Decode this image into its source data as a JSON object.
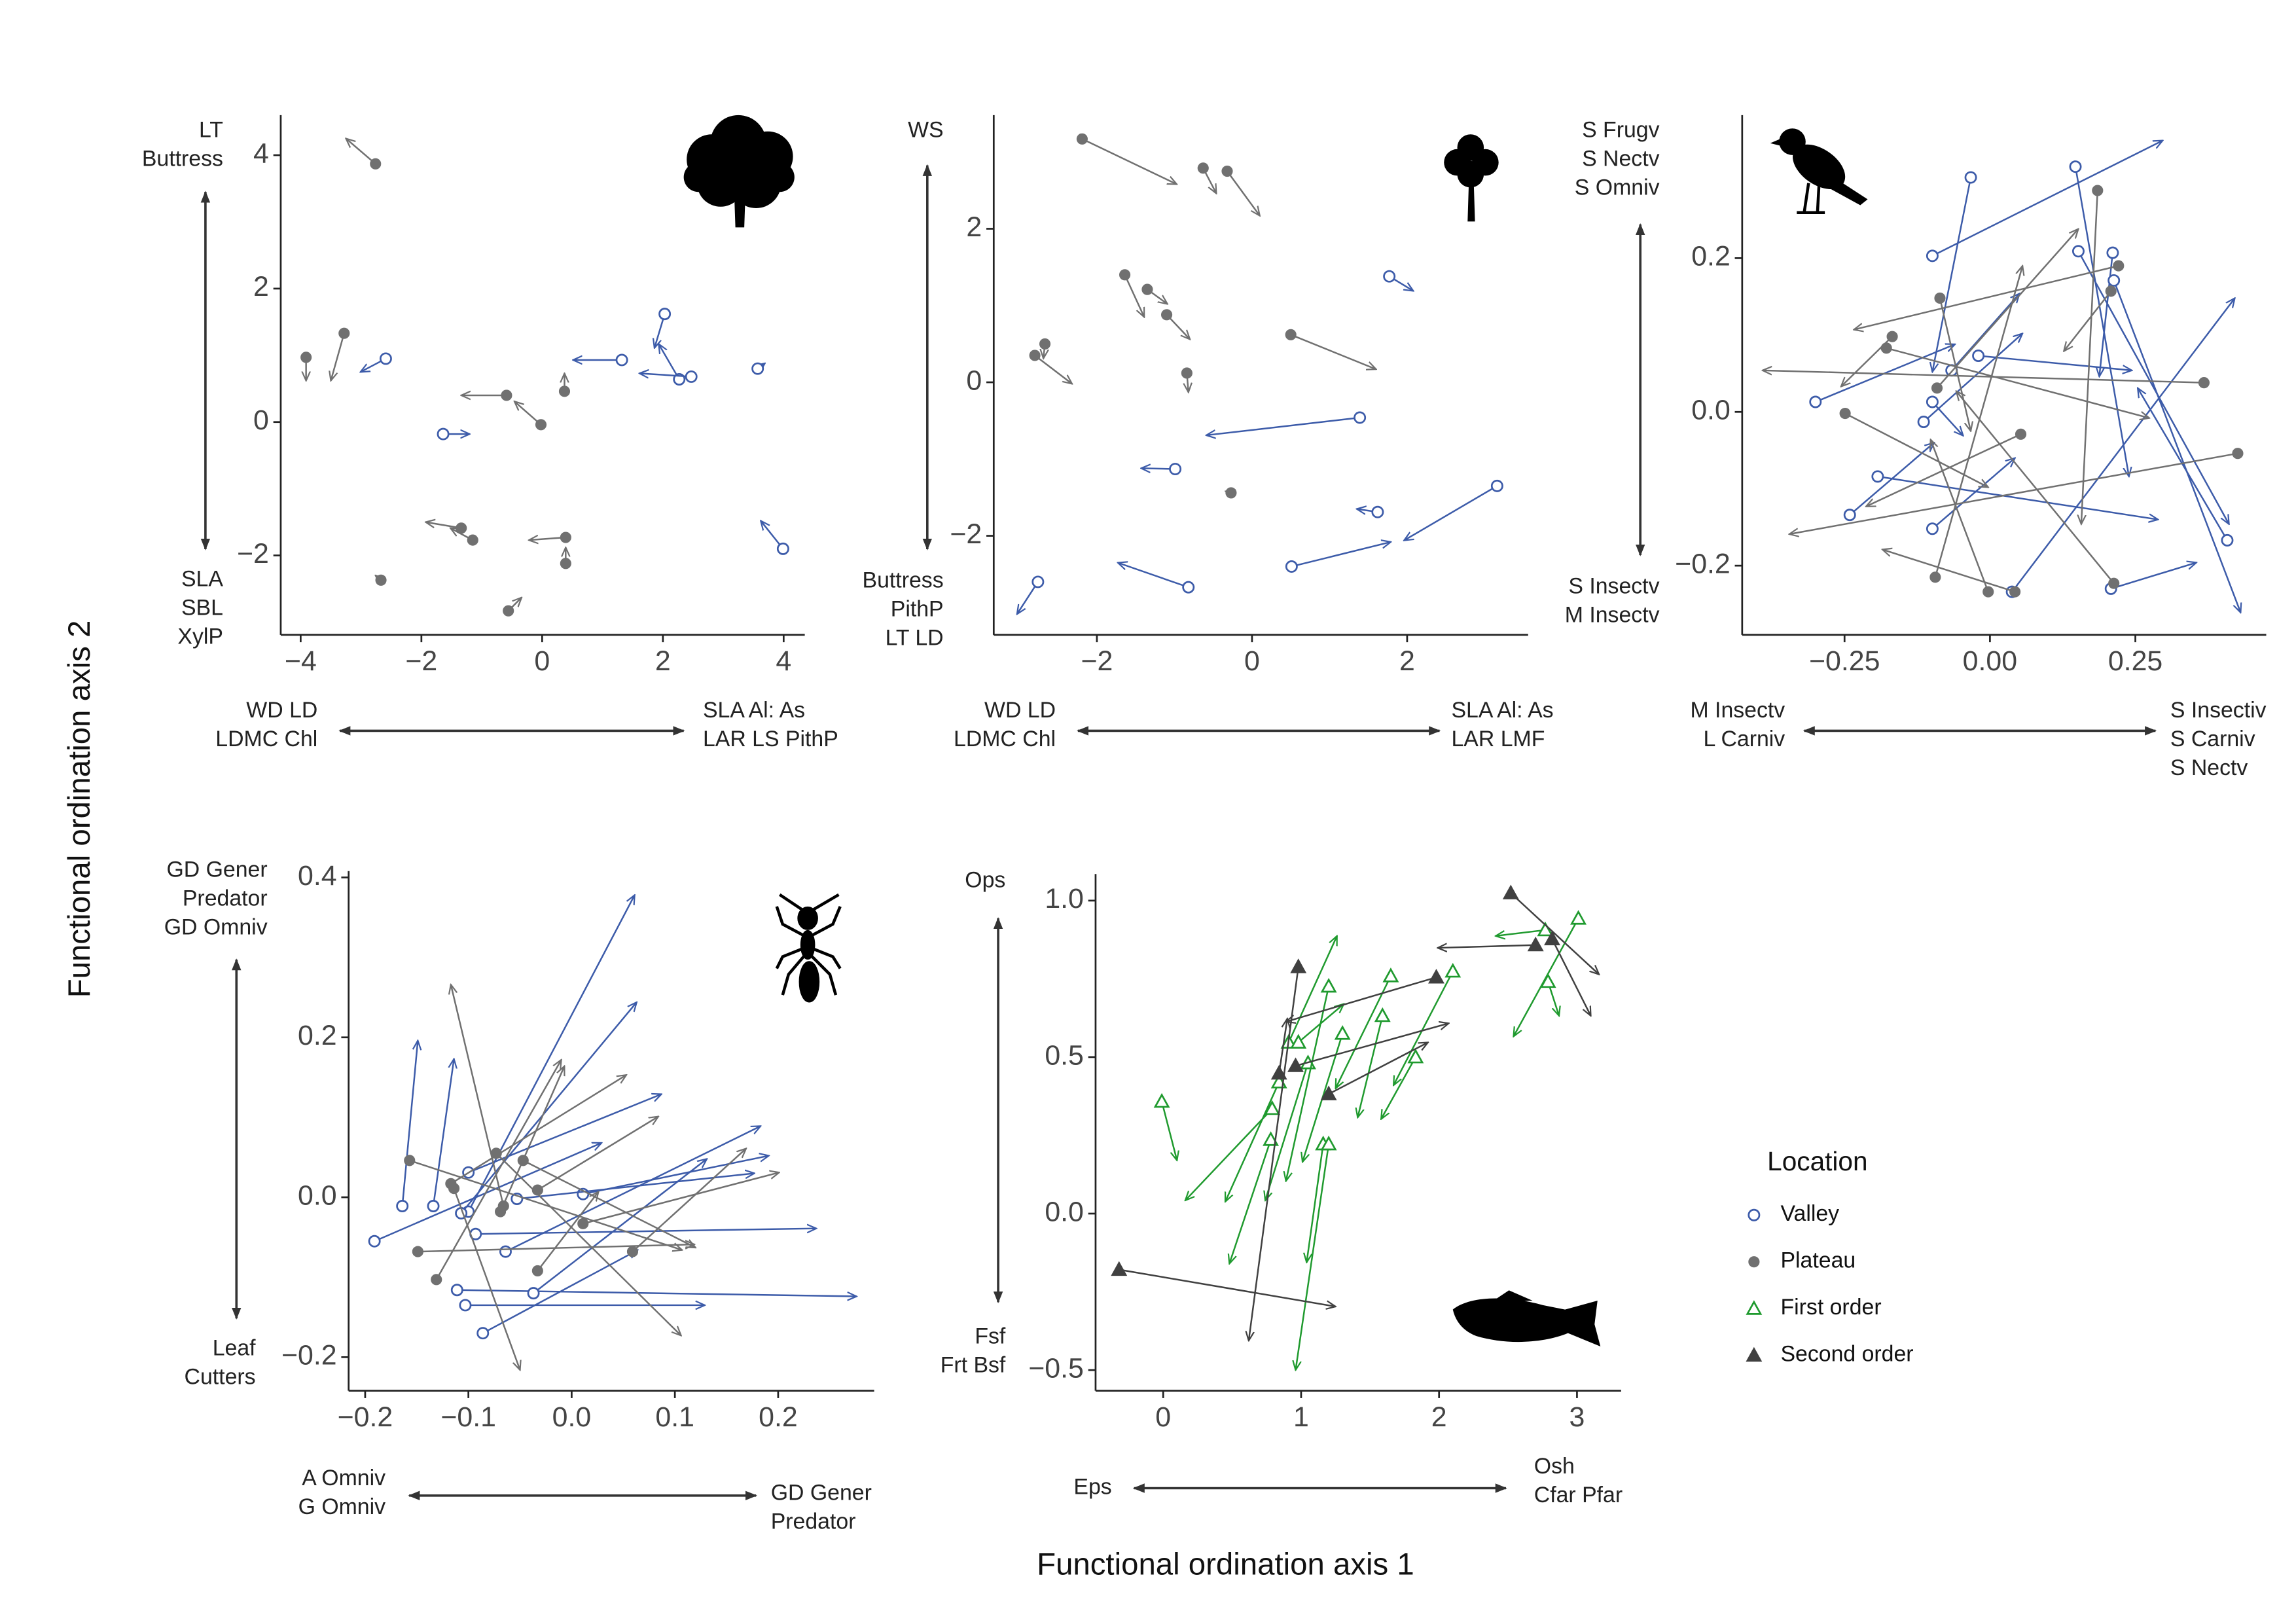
{
  "xlabel": "Functional ordination axis 1",
  "ylabel": "Functional ordination axis 2",
  "legend_title": "Location",
  "chart_data": [
    {
      "type": "arrow",
      "xlim": [
        -4.33,
        4.35
      ],
      "ylim": [
        -3.19,
        4.6
      ],
      "xticks": [
        {
          "value": -4,
          "label": "−4"
        },
        {
          "value": -2,
          "label": "−2"
        },
        0,
        2,
        4
      ],
      "yticks": [
        {
          "value": -2,
          "label": "−2"
        },
        0,
        2,
        4
      ],
      "x_left_label": [
        "WD LD",
        "LDMC Chl"
      ],
      "x_right_label": [
        "SLA Al: As",
        "LAR LS PithP"
      ],
      "y_top_label": [
        "LT",
        "Buttress"
      ],
      "y_bottom_label": [
        "SLA",
        "SBL",
        "XylP"
      ],
      "series": [
        {
          "name": "Valley",
          "color": "#3c5ba9",
          "marker": "open-circle",
          "x": [
            -2.59,
            -1.64,
            1.32,
            2.03,
            2.27,
            2.47,
            3.57,
            3.99
          ],
          "y": [
            0.95,
            -0.18,
            0.93,
            1.62,
            0.64,
            0.68,
            0.8,
            -1.9
          ],
          "x_end": [
            -3.01,
            -1.2,
            0.51,
            1.86,
            1.93,
            1.61,
            3.69,
            3.62
          ],
          "y_end": [
            0.75,
            -0.18,
            0.93,
            1.11,
            1.17,
            0.73,
            0.88,
            -1.48
          ]
        },
        {
          "name": "Plateau",
          "color": "#707070",
          "marker": "filled-circle",
          "x": [
            -2.76,
            -3.28,
            -3.91,
            -0.59,
            -0.02,
            0.37,
            -1.34,
            -1.15,
            0.39,
            0.39,
            -2.67,
            -0.56
          ],
          "y": [
            3.87,
            1.33,
            0.97,
            0.4,
            -0.04,
            0.46,
            -1.59,
            -1.77,
            -1.73,
            -2.12,
            -2.37,
            -2.83
          ],
          "x_end": [
            -3.25,
            -3.5,
            -3.91,
            -1.34,
            -0.46,
            0.37,
            -1.93,
            -1.52,
            -0.22,
            0.39,
            -2.76,
            -0.34
          ],
          "y_end": [
            4.25,
            0.62,
            0.62,
            0.4,
            0.31,
            0.73,
            -1.5,
            -1.59,
            -1.77,
            -1.88,
            -2.3,
            -2.63
          ]
        }
      ]
    },
    {
      "type": "arrow",
      "xlim": [
        -3.33,
        3.56
      ],
      "ylim": [
        -3.29,
        3.48
      ],
      "xticks": [
        {
          "value": -2,
          "label": "−2"
        },
        0,
        2
      ],
      "yticks": [
        {
          "value": -2,
          "label": "−2"
        },
        0,
        2
      ],
      "x_left_label": [
        "WD LD",
        "LDMC Chl"
      ],
      "x_right_label": [
        "SLA Al: As",
        "LAR LMF"
      ],
      "y_top_label": [
        "WS"
      ],
      "y_bottom_label": [
        "Buttress",
        "PithP",
        "LT LD"
      ],
      "series": [
        {
          "name": "Valley",
          "color": "#3c5ba9",
          "marker": "open-circle",
          "x": [
            1.77,
            1.39,
            -0.99,
            1.62,
            0.51,
            3.16,
            -0.82,
            -2.76
          ],
          "y": [
            1.38,
            -0.46,
            -1.13,
            -1.69,
            -2.4,
            -1.35,
            -2.67,
            -2.6
          ],
          "x_end": [
            2.08,
            -0.59,
            -1.43,
            1.35,
            1.79,
            1.96,
            -1.73,
            -3.03
          ],
          "y_end": [
            1.19,
            -0.69,
            -1.12,
            -1.65,
            -2.08,
            -2.06,
            -2.35,
            -3.02
          ]
        },
        {
          "name": "Plateau",
          "color": "#707070",
          "marker": "filled-circle",
          "x": [
            -2.19,
            -0.63,
            -0.32,
            -1.64,
            -1.35,
            -1.1,
            -2.67,
            -2.8,
            -0.84,
            0.5,
            -0.27
          ],
          "y": [
            3.17,
            2.79,
            2.75,
            1.4,
            1.21,
            0.88,
            0.5,
            0.35,
            0.12,
            0.62,
            -1.44
          ],
          "x_end": [
            -0.97,
            -0.46,
            0.1,
            -1.39,
            -1.09,
            -0.8,
            -2.69,
            -2.32,
            -0.82,
            1.6,
            -0.34
          ],
          "y_end": [
            2.58,
            2.46,
            2.17,
            0.85,
            1.02,
            0.56,
            0.31,
            -0.02,
            -0.13,
            0.17,
            -1.42
          ]
        }
      ]
    },
    {
      "type": "arrow",
      "xlim": [
        -0.426,
        0.475
      ],
      "ylim": [
        -0.29,
        0.386
      ],
      "xticks": [
        {
          "value": -0.25,
          "label": "−0.25"
        },
        {
          "value": 0,
          "label": "0.00"
        },
        {
          "value": 0.25,
          "label": "0.25"
        }
      ],
      "yticks": [
        {
          "value": -0.2,
          "label": "−0.2"
        },
        {
          "value": 0,
          "label": "0.0"
        },
        {
          "value": 0.2,
          "label": "0.2"
        }
      ],
      "x_left_label": [
        "M Insectv",
        "L Carniv"
      ],
      "x_right_label": [
        "S Insectiv",
        "S Carniv",
        "S Nectv"
      ],
      "y_top_label": [
        "S Frugv",
        "S Nectv",
        "S Omniv"
      ],
      "y_bottom_label": [
        "S Insectv",
        "M Insectv"
      ],
      "series": [
        {
          "name": "Valley",
          "color": "#3c5ba9",
          "marker": "open-circle",
          "x": [
            -0.3,
            -0.033,
            -0.099,
            0.147,
            0.211,
            0.152,
            0.213,
            -0.02,
            -0.066,
            -0.099,
            -0.114,
            -0.193,
            -0.241,
            -0.099,
            0.038,
            0.208,
            0.408
          ],
          "y": [
            0.013,
            0.305,
            0.203,
            0.319,
            0.207,
            0.209,
            0.171,
            0.073,
            0.054,
            0.013,
            -0.013,
            -0.084,
            -0.134,
            -0.152,
            -0.234,
            -0.23,
            -0.167
          ],
          "x_end": [
            -0.06,
            -0.099,
            0.297,
            0.239,
            0.188,
            0.411,
            0.431,
            0.244,
            0.051,
            -0.046,
            0.056,
            0.289,
            -0.096,
            0.043,
            0.421,
            0.355,
            0.254
          ],
          "y_end": [
            0.088,
            0.052,
            0.353,
            -0.084,
            0.046,
            -0.146,
            -0.261,
            0.054,
            0.154,
            -0.031,
            0.102,
            -0.14,
            -0.04,
            -0.06,
            0.148,
            -0.196,
            0.031
          ]
        },
        {
          "name": "Plateau",
          "color": "#707070",
          "marker": "filled-circle",
          "x": [
            0.185,
            0.221,
            0.208,
            -0.086,
            -0.168,
            -0.178,
            0.368,
            -0.249,
            0.053,
            0.426,
            -0.091,
            -0.003,
            -0.094,
            0.043,
            0.213
          ],
          "y": [
            0.288,
            0.19,
            0.157,
            0.148,
            0.098,
            0.083,
            0.038,
            -0.002,
            -0.029,
            -0.054,
            0.031,
            -0.234,
            -0.215,
            -0.234,
            -0.223
          ],
          "x_end": [
            0.157,
            -0.234,
            0.127,
            -0.033,
            -0.256,
            0.274,
            -0.391,
            -0.003,
            -0.213,
            -0.345,
            0.152,
            -0.102,
            0.056,
            -0.185,
            -0.058
          ],
          "y_end": [
            -0.146,
            0.107,
            0.079,
            -0.025,
            0.033,
            -0.008,
            0.054,
            -0.098,
            -0.123,
            -0.159,
            0.238,
            -0.036,
            0.19,
            -0.179,
            0.027
          ]
        }
      ]
    },
    {
      "type": "arrow",
      "xlim": [
        -0.216,
        0.293
      ],
      "ylim": [
        -0.242,
        0.408
      ],
      "xticks": [
        {
          "value": -0.2,
          "label": "−0.2"
        },
        {
          "value": -0.1,
          "label": "−0.1"
        },
        {
          "value": 0,
          "label": "0.0"
        },
        {
          "value": 0.1,
          "label": "0.1"
        },
        {
          "value": 0.2,
          "label": "0.2"
        }
      ],
      "yticks": [
        {
          "value": -0.2,
          "label": "−0.2"
        },
        {
          "value": 0,
          "label": "0.0"
        },
        {
          "value": 0.2,
          "label": "0.2"
        },
        {
          "value": 0.4,
          "label": "0.4"
        }
      ],
      "x_left_label": [
        "A Omniv",
        "G Omniv"
      ],
      "x_right_label": [
        "GD Gener",
        "Predator"
      ],
      "y_top_label": [
        "GD Gener",
        "Predator",
        "GD Omniv"
      ],
      "y_bottom_label": [
        "Leaf",
        "Cutters"
      ],
      "series": [
        {
          "name": "Valley",
          "color": "#3c5ba9",
          "marker": "open-circle",
          "x": [
            -0.191,
            -0.164,
            -0.134,
            -0.1,
            -0.107,
            -0.1,
            -0.093,
            -0.111,
            -0.103,
            -0.086,
            -0.064,
            -0.037,
            0.011,
            -0.053
          ],
          "y": [
            -0.055,
            -0.011,
            -0.011,
            -0.018,
            -0.02,
            0.031,
            -0.046,
            -0.116,
            -0.135,
            -0.17,
            -0.068,
            -0.12,
            0.004,
            -0.002
          ],
          "x_end": [
            0.029,
            -0.149,
            -0.114,
            0.061,
            0.063,
            0.087,
            0.237,
            0.276,
            0.129,
            0.064,
            0.183,
            0.131,
            0.191,
            0.177
          ],
          "y_end": [
            0.068,
            0.196,
            0.173,
            0.378,
            0.244,
            0.129,
            -0.039,
            -0.124,
            -0.135,
            -0.066,
            0.089,
            0.048,
            0.052,
            0.03
          ]
        },
        {
          "name": "Plateau",
          "color": "#707070",
          "marker": "filled-circle",
          "x": [
            -0.157,
            -0.149,
            -0.131,
            -0.117,
            -0.114,
            -0.073,
            -0.066,
            -0.069,
            -0.033,
            0.011,
            0.059,
            -0.047,
            -0.033
          ],
          "y": [
            0.046,
            -0.068,
            -0.103,
            0.017,
            0.011,
            0.055,
            -0.011,
            -0.018,
            -0.092,
            -0.033,
            -0.068,
            0.046,
            0.009
          ],
          "x_end": [
            0.107,
            0.119,
            -0.01,
            0.053,
            -0.05,
            0.106,
            -0.117,
            -0.007,
            0.026,
            0.201,
            0.169,
            0.12,
            0.084
          ],
          "y_end": [
            -0.066,
            -0.059,
            0.172,
            0.153,
            -0.216,
            -0.173,
            0.266,
            0.164,
            0.007,
            0.031,
            0.061,
            -0.063,
            0.101
          ]
        }
      ]
    },
    {
      "type": "arrow",
      "xlim": [
        -0.49,
        3.32
      ],
      "ylim": [
        -0.566,
        1.085
      ],
      "xticks": [
        0,
        1,
        2,
        3
      ],
      "yticks": [
        {
          "value": -0.5,
          "label": "−0.5"
        },
        {
          "value": 0,
          "label": "0.0"
        },
        {
          "value": 0.5,
          "label": "0.5"
        },
        {
          "value": 1,
          "label": "1.0"
        }
      ],
      "x_left_label": [
        "Eps"
      ],
      "x_right_label": [
        "Osh",
        "Cfar Pfar"
      ],
      "y_top_label": [
        "Ops"
      ],
      "y_bottom_label": [
        "Fsf",
        "Frt Bsf"
      ],
      "series": [
        {
          "name": "First order",
          "color": "#1f9a2e",
          "marker": "open-triangle",
          "x": [
            -0.01,
            0.79,
            0.84,
            0.78,
            0.91,
            0.98,
            1.05,
            1.16,
            1.2,
            1.2,
            1.3,
            1.65,
            1.59,
            1.83,
            2.1,
            2.77,
            3.01,
            2.79
          ],
          "y": [
            0.358,
            0.335,
            0.42,
            0.236,
            0.547,
            0.547,
            0.481,
            0.222,
            0.726,
            0.222,
            0.575,
            0.759,
            0.632,
            0.5,
            0.774,
            0.906,
            0.943,
            0.741
          ],
          "x_end": [
            0.1,
            0.16,
            0.45,
            0.48,
            1.26,
            1.31,
            0.74,
            1.04,
            0.89,
            0.96,
            1.01,
            1.25,
            1.41,
            1.58,
            1.67,
            2.41,
            2.54,
            2.87
          ],
          "y_end": [
            0.17,
            0.042,
            0.038,
            -0.16,
            0.887,
            0.67,
            0.042,
            -0.156,
            0.104,
            -0.5,
            0.165,
            0.4,
            0.307,
            0.302,
            0.41,
            0.887,
            0.566,
            0.632
          ]
        },
        {
          "name": "Second order",
          "color": "#404040",
          "marker": "filled-triangle",
          "x": [
            -0.32,
            0.98,
            0.84,
            1.98,
            2.52,
            2.7,
            2.82,
            1.2,
            0.96
          ],
          "y": [
            -0.179,
            0.788,
            0.448,
            0.755,
            1.024,
            0.858,
            0.877,
            0.382,
            0.472
          ],
          "x_end": [
            1.25,
            0.62,
            0.9,
            0.89,
            3.16,
            1.99,
            3.1,
            1.92,
            2.07
          ],
          "y_end": [
            -0.297,
            -0.406,
            0.623,
            0.613,
            0.764,
            0.849,
            0.632,
            0.547,
            0.608
          ]
        }
      ]
    }
  ]
}
